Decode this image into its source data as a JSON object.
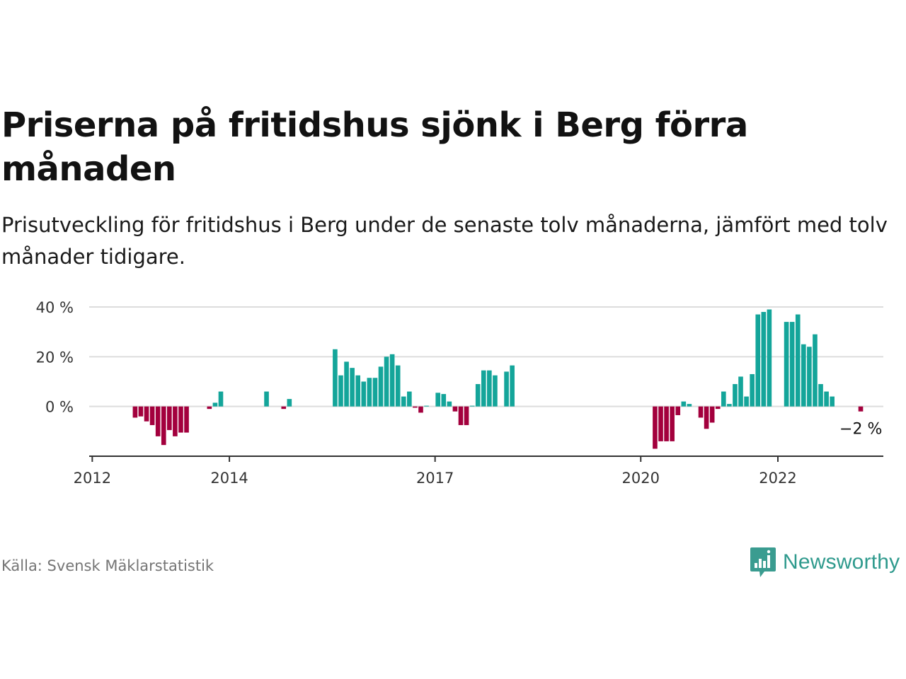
{
  "title": "Priserna på fritidshus sjönk i Berg förra månaden",
  "subtitle": "Prisutveckling för fritidshus i Berg under de senaste tolv månaderna, jämfört med tolv månader tidigare.",
  "source": "Källa: Svensk Mäklarstatistik",
  "brand": {
    "name": "Newsworthy",
    "icon": "newsworthy-logo-icon",
    "color": "#3a9c90"
  },
  "colors": {
    "positive": "#14a59a",
    "negative": "#a3003d",
    "grid": "#dddddd",
    "axis": "#333333"
  },
  "chart_data": {
    "type": "bar",
    "xlabel": "",
    "ylabel": "",
    "ylim": [
      -20,
      40
    ],
    "xlim": [
      "2011-12-15",
      "2023-07-15"
    ],
    "y_ticks": [
      {
        "value": 0,
        "label": "0 %"
      },
      {
        "value": 20,
        "label": "20 %"
      },
      {
        "value": 40,
        "label": "40 %"
      }
    ],
    "x_ticks": [
      {
        "value": "2012-01-01",
        "label": "2012"
      },
      {
        "value": "2014-01-01",
        "label": "2014"
      },
      {
        "value": "2017-01-01",
        "label": "2017"
      },
      {
        "value": "2020-01-01",
        "label": "2020"
      },
      {
        "value": "2022-01-01",
        "label": "2022"
      }
    ],
    "annotation": {
      "label": "−2 %",
      "date": "2023-03"
    },
    "series": [
      {
        "data": [
          [
            "2012-08",
            -4.5
          ],
          [
            "2012-09",
            -4
          ],
          [
            "2012-10",
            -6
          ],
          [
            "2012-11",
            -7.5
          ],
          [
            "2012-12",
            -12
          ],
          [
            "2013-01",
            -15.5
          ],
          [
            "2013-02",
            -9.5
          ],
          [
            "2013-03",
            -12
          ],
          [
            "2013-04",
            -10.5
          ],
          [
            "2013-05",
            -10.5
          ],
          [
            "2013-09",
            -1
          ],
          [
            "2013-10",
            1.5
          ],
          [
            "2013-11",
            6
          ],
          [
            "2014-07",
            6
          ],
          [
            "2014-10",
            -1
          ],
          [
            "2014-11",
            3
          ],
          [
            "2015-07",
            23
          ],
          [
            "2015-08",
            12.5
          ],
          [
            "2015-09",
            18
          ],
          [
            "2015-10",
            15.5
          ],
          [
            "2015-11",
            12.5
          ],
          [
            "2015-12",
            10
          ],
          [
            "2016-01",
            11.5
          ],
          [
            "2016-02",
            11.5
          ],
          [
            "2016-03",
            16
          ],
          [
            "2016-04",
            20
          ],
          [
            "2016-05",
            21
          ],
          [
            "2016-06",
            16.5
          ],
          [
            "2016-07",
            4
          ],
          [
            "2016-08",
            6
          ],
          [
            "2016-09",
            -0.5
          ],
          [
            "2016-10",
            -2.5
          ],
          [
            "2016-11",
            0.3
          ],
          [
            "2017-01",
            5.5
          ],
          [
            "2017-02",
            5
          ],
          [
            "2017-03",
            2
          ],
          [
            "2017-04",
            -2
          ],
          [
            "2017-05",
            -7.5
          ],
          [
            "2017-06",
            -7.5
          ],
          [
            "2017-07",
            0.3
          ],
          [
            "2017-08",
            9
          ],
          [
            "2017-09",
            14.5
          ],
          [
            "2017-10",
            14.5
          ],
          [
            "2017-11",
            12.5
          ],
          [
            "2018-01",
            14
          ],
          [
            "2018-02",
            16.5
          ],
          [
            "2020-03",
            -17
          ],
          [
            "2020-04",
            -14
          ],
          [
            "2020-05",
            -14
          ],
          [
            "2020-06",
            -14
          ],
          [
            "2020-07",
            -3.5
          ],
          [
            "2020-08",
            2
          ],
          [
            "2020-09",
            1
          ],
          [
            "2020-11",
            -4.5
          ],
          [
            "2020-12",
            -9
          ],
          [
            "2021-01",
            -6.5
          ],
          [
            "2021-02",
            -1
          ],
          [
            "2021-03",
            6
          ],
          [
            "2021-04",
            1
          ],
          [
            "2021-05",
            9
          ],
          [
            "2021-06",
            12
          ],
          [
            "2021-07",
            4
          ],
          [
            "2021-08",
            13
          ],
          [
            "2021-09",
            37
          ],
          [
            "2021-10",
            38
          ],
          [
            "2021-11",
            39
          ],
          [
            "2022-02",
            34
          ],
          [
            "2022-03",
            34
          ],
          [
            "2022-04",
            37
          ],
          [
            "2022-05",
            25
          ],
          [
            "2022-06",
            24
          ],
          [
            "2022-07",
            29
          ],
          [
            "2022-08",
            9
          ],
          [
            "2022-09",
            6
          ],
          [
            "2022-10",
            4
          ],
          [
            "2023-03",
            -2
          ]
        ]
      }
    ]
  }
}
